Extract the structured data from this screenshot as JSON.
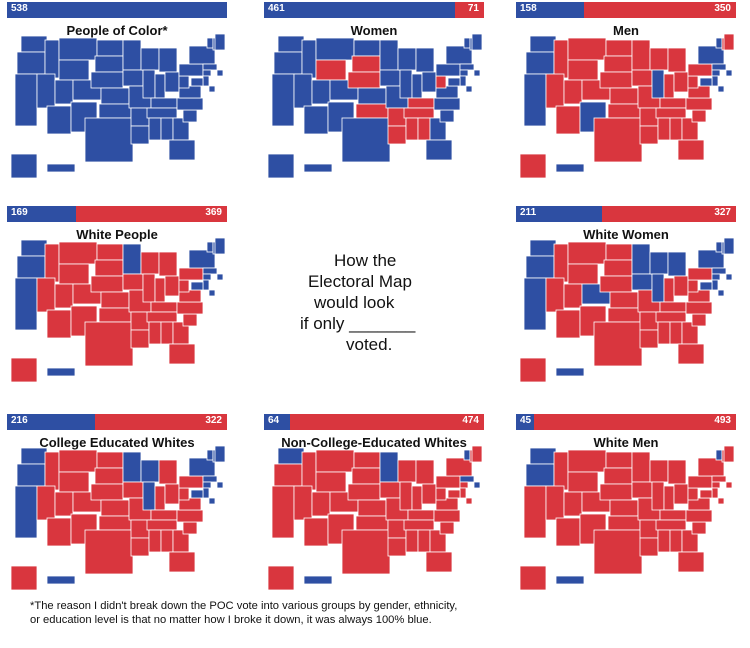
{
  "colors": {
    "dem": "#2e4fa3",
    "rep": "#d9363e",
    "border": "#ffffff"
  },
  "panels": [
    {
      "id": "poc",
      "title": "People of Color*",
      "dem": 538,
      "rep": 0,
      "dem_label": "538",
      "rep_label": "",
      "pattern": "all-blue"
    },
    {
      "id": "women",
      "title": "Women",
      "dem": 461,
      "rep": 71,
      "dem_label": "461",
      "rep_label": "71",
      "pattern": "women"
    },
    {
      "id": "men",
      "title": "Men",
      "dem": 158,
      "rep": 350,
      "dem_label": "158",
      "rep_label": "350",
      "pattern": "men"
    },
    {
      "id": "white-people",
      "title": "White People",
      "dem": 169,
      "rep": 369,
      "dem_label": "169",
      "rep_label": "369",
      "pattern": "white"
    },
    {
      "id": "white-women",
      "title": "White Women",
      "dem": 211,
      "rep": 327,
      "dem_label": "211",
      "rep_label": "327",
      "pattern": "white-women"
    },
    {
      "id": "college-whites",
      "title": "College Educated Whites",
      "dem": 216,
      "rep": 322,
      "dem_label": "216",
      "rep_label": "322",
      "pattern": "college"
    },
    {
      "id": "noncollege-whites",
      "title": "Non-College-Educated Whites",
      "dem": 64,
      "rep": 474,
      "dem_label": "64",
      "rep_label": "474",
      "pattern": "noncollege"
    },
    {
      "id": "white-men",
      "title": "White Men",
      "dem": 45,
      "rep": 493,
      "dem_label": "45",
      "rep_label": "493",
      "pattern": "white-men"
    }
  ],
  "center_text": {
    "line1": "How the",
    "line2": "Electoral Map",
    "line3": "would look",
    "line4": "if only _______",
    "line5": "voted."
  },
  "footnote": {
    "line1": "*The reason I didn't break down the POC vote into various groups by gender, ethnicity,",
    "line2": "or education level is that no matter how I broke it down, it was always 100% blue."
  }
}
